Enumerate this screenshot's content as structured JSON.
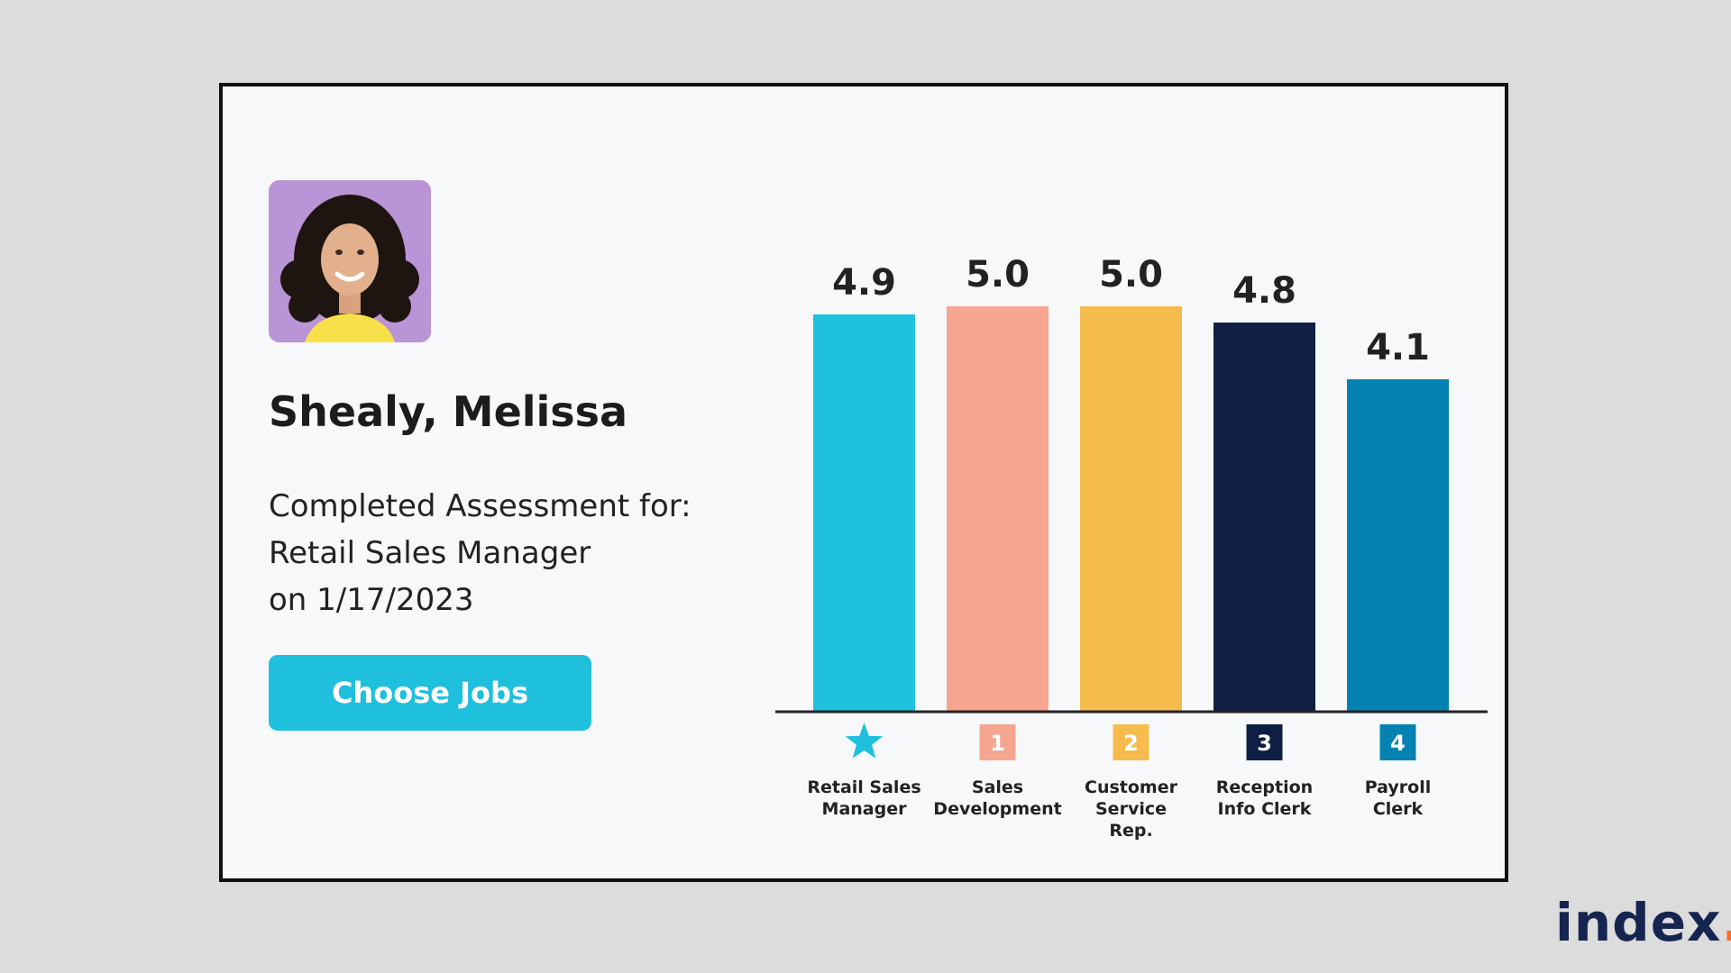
{
  "candidate": {
    "name": "Shealy, Melissa",
    "line1": "Completed Assessment for:",
    "line2": "Retail Sales Manager",
    "line3": "on 1/17/2023",
    "choose_label": "Choose Jobs"
  },
  "brand": {
    "text": "index",
    "dot": ".",
    "color": "#15254f",
    "dot_color": "#ff6a2b"
  },
  "chart_data": {
    "type": "bar",
    "title": "",
    "xlabel": "",
    "ylabel": "",
    "ylim": [
      0,
      5.0
    ],
    "grid": false,
    "categories": [
      [
        "Retail Sales",
        "Manager"
      ],
      [
        "Sales",
        "Development"
      ],
      [
        "Customer",
        "Service",
        "Rep."
      ],
      [
        "Reception",
        "Info Clerk"
      ],
      [
        "Payroll",
        "Clerk"
      ]
    ],
    "values": [
      4.9,
      5.0,
      5.0,
      4.8,
      4.1
    ],
    "value_labels": [
      "4.9",
      "5.0",
      "5.0",
      "4.8",
      "4.1"
    ],
    "badges": [
      "star",
      "1",
      "2",
      "3",
      "4"
    ],
    "colors": [
      "#1fc1de",
      "#f6a690",
      "#f5bb4d",
      "#0f1f43",
      "#0582b1"
    ]
  }
}
